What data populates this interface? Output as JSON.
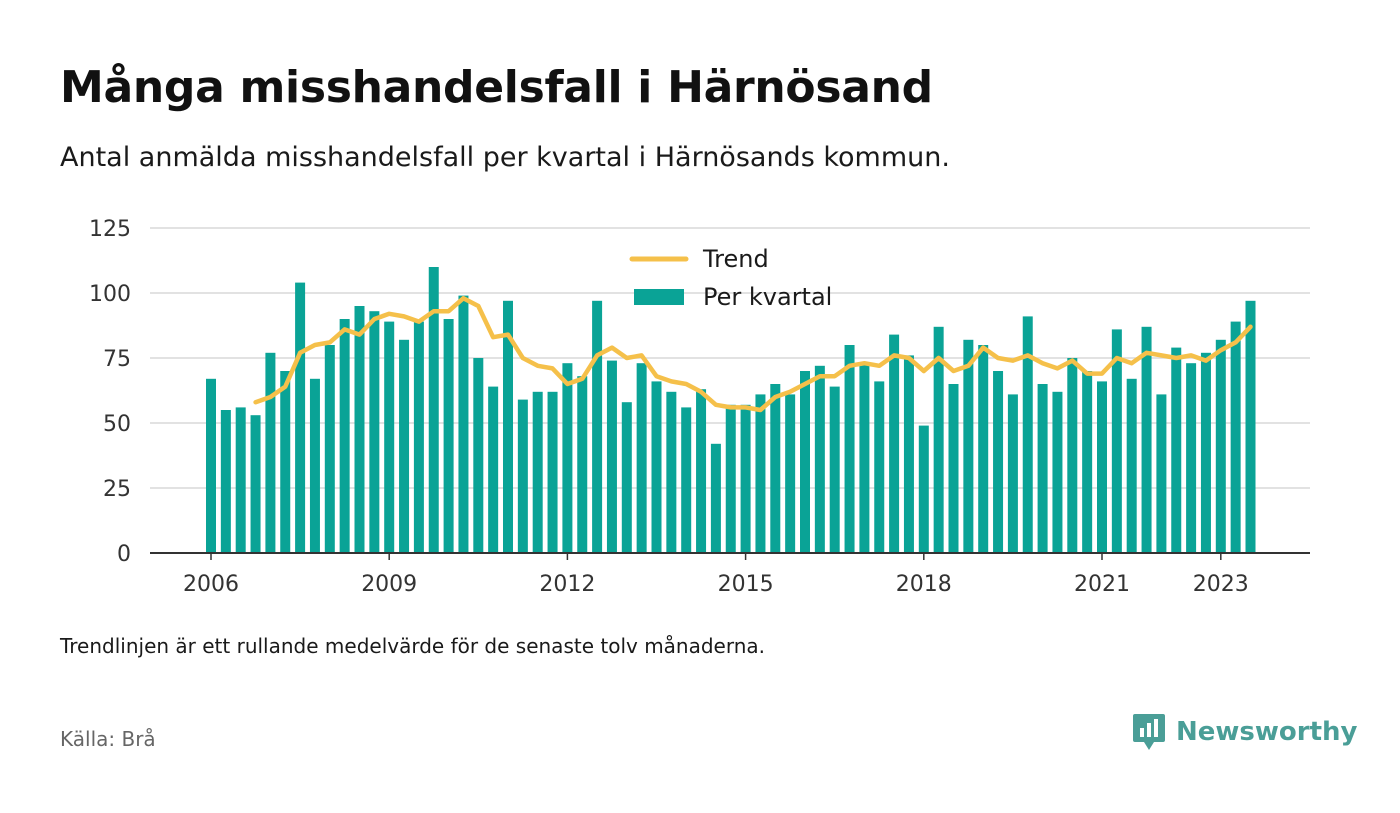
{
  "title": "Många misshandelsfall i Härnösand",
  "subtitle": "Antal anmälda misshandelsfall per kvartal i Härnösands kommun.",
  "note": "Trendlinjen är ett rullande medelvärde för de senaste tolv månaderna.",
  "source": "Källa: Brå",
  "brand": {
    "name": "Newsworthy",
    "icon": "newsworthy-logo-icon"
  },
  "colors": {
    "bars": "#0aa396",
    "trend": "#f5c04a",
    "grid": "#d9d9d9",
    "axis": "#333333",
    "brand": "#4a9e97"
  },
  "chart_data": {
    "type": "bar",
    "x_start": "2006 Q1",
    "x_end": "2023 Q3",
    "x_tick_labels": [
      "2006",
      "2009",
      "2012",
      "2015",
      "2018",
      "2021",
      "2023"
    ],
    "y_tick_labels": [
      "0",
      "25",
      "50",
      "75",
      "100",
      "125"
    ],
    "ylim": [
      0,
      125
    ],
    "grid": true,
    "legend_position": "top-center",
    "series": [
      {
        "name": "Per kvartal",
        "type": "bar",
        "values": [
          67,
          55,
          56,
          53,
          77,
          70,
          104,
          67,
          80,
          90,
          95,
          93,
          89,
          82,
          89,
          110,
          90,
          99,
          75,
          64,
          97,
          59,
          62,
          62,
          73,
          68,
          97,
          74,
          58,
          73,
          66,
          62,
          56,
          63,
          42,
          57,
          57,
          61,
          65,
          61,
          70,
          72,
          64,
          80,
          73,
          66,
          84,
          76,
          49,
          87,
          65,
          82,
          80,
          70,
          61,
          91,
          65,
          62,
          75,
          70,
          66,
          86,
          67,
          87,
          61,
          79,
          73,
          77,
          82,
          89,
          97
        ]
      },
      {
        "name": "Trend",
        "type": "line",
        "values": [
          null,
          null,
          null,
          58,
          60,
          64,
          77,
          80,
          81,
          86,
          84,
          90,
          92,
          91,
          89,
          93,
          93,
          98,
          95,
          83,
          84,
          75,
          72,
          71,
          65,
          67,
          76,
          79,
          75,
          76,
          68,
          66,
          65,
          62,
          57,
          56,
          56,
          55,
          60,
          62,
          65,
          68,
          68,
          72,
          73,
          72,
          76,
          75,
          70,
          75,
          70,
          72,
          79,
          75,
          74,
          76,
          73,
          71,
          74,
          69,
          69,
          75,
          73,
          77,
          76,
          75,
          76,
          74,
          78,
          81,
          87
        ]
      }
    ]
  }
}
